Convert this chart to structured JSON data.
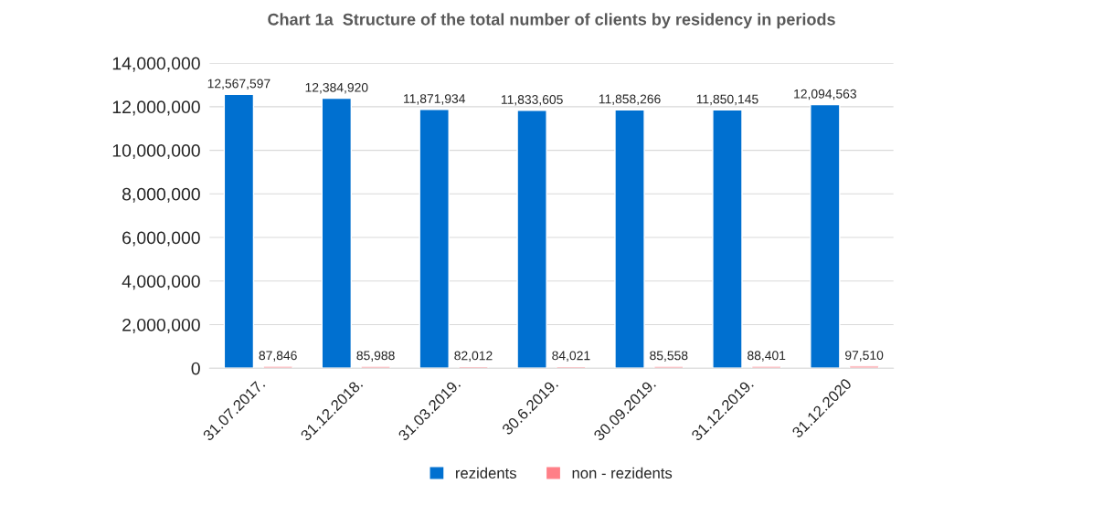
{
  "chart_data": {
    "type": "bar",
    "title": "Chart 1a  Structure of the total number of clients by residency in periods",
    "categories": [
      "31.07.2017.",
      "31.12.2018.",
      "31.03.2019.",
      "30.6.2019.",
      "30.09.2019.",
      "31.12.2019.",
      "31.12.2020"
    ],
    "series": [
      {
        "name": "rezidents",
        "color": "#0070d0",
        "values": [
          12567597,
          12384920,
          11871934,
          11833605,
          11858266,
          11850145,
          12094563
        ],
        "value_labels": [
          "12,567,597",
          "12,384,920",
          "11,871,934",
          "11,833,605",
          "11,858,266",
          "11,850,145",
          "12,094,563"
        ]
      },
      {
        "name": "non - rezidents",
        "color": "#ff7f87",
        "values": [
          87846,
          85988,
          82012,
          84021,
          85558,
          88401,
          97510
        ],
        "value_labels": [
          "87,846",
          "85,988",
          "82,012",
          "84,021",
          "85,558",
          "88,401",
          "97,510"
        ]
      }
    ],
    "ylim": [
      0,
      14000000
    ],
    "yticks": [
      {
        "value": 0,
        "label": "0"
      },
      {
        "value": 2000000,
        "label": "2,000,000"
      },
      {
        "value": 4000000,
        "label": "4,000,000"
      },
      {
        "value": 6000000,
        "label": "6,000,000"
      },
      {
        "value": 8000000,
        "label": "8,000,000"
      },
      {
        "value": 10000000,
        "label": "10,000,000"
      },
      {
        "value": 12000000,
        "label": "12,000,000"
      },
      {
        "value": 14000000,
        "label": "14,000,000"
      }
    ],
    "grid": "y",
    "legend": "bottom"
  }
}
